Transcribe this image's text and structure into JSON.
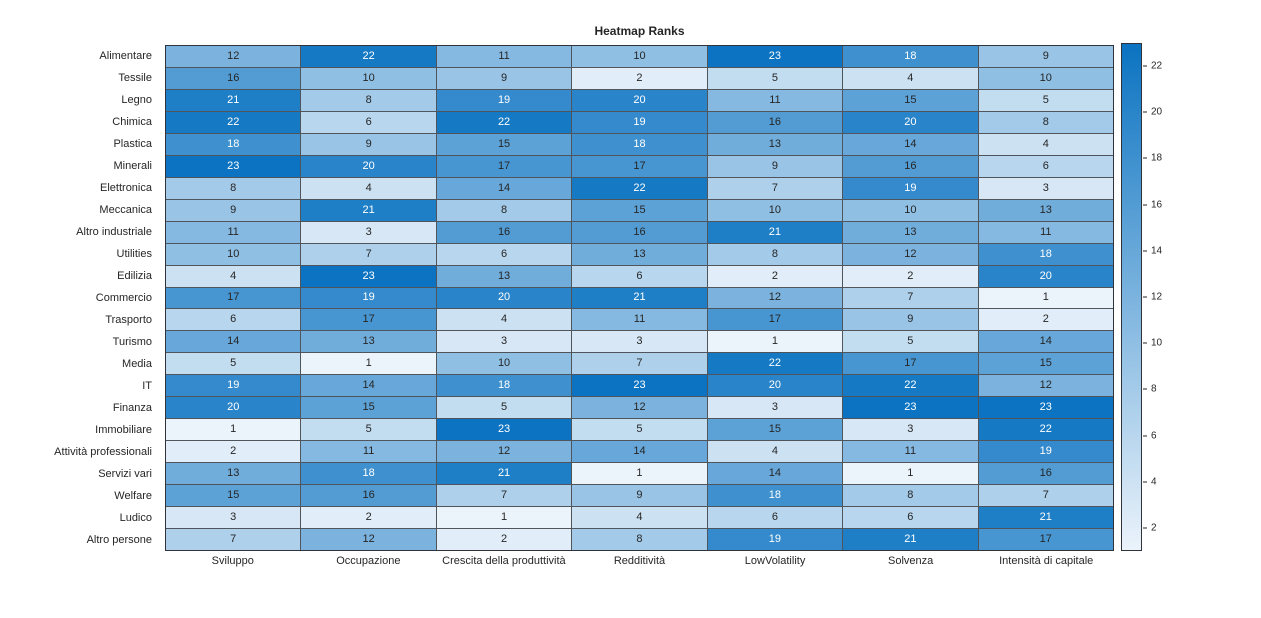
{
  "figure": {
    "title": "Heatmap Ranks"
  },
  "chart_data": {
    "type": "heatmap",
    "title": "Heatmap Ranks",
    "rows": [
      "Alimentare",
      "Tessile",
      "Legno",
      "Chimica",
      "Plastica",
      "Minerali",
      "Elettronica",
      "Meccanica",
      "Altro industriale",
      "Utilities",
      "Edilizia",
      "Commercio",
      "Trasporto",
      "Turismo",
      "Media",
      "IT",
      "Finanza",
      "Immobiliare",
      "Attività professionali",
      "Servizi vari",
      "Welfare",
      "Ludico",
      "Altro persone"
    ],
    "columns": [
      "Sviluppo",
      "Occupazione",
      "Crescita della produttività",
      "Redditività",
      "LowVolatility",
      "Solvenza",
      "Intensità di capitale"
    ],
    "values": [
      [
        12,
        22,
        11,
        10,
        23,
        18,
        9
      ],
      [
        16,
        10,
        9,
        2,
        5,
        4,
        10
      ],
      [
        21,
        8,
        19,
        20,
        11,
        15,
        5
      ],
      [
        22,
        6,
        22,
        19,
        16,
        20,
        8
      ],
      [
        18,
        9,
        15,
        18,
        13,
        14,
        4
      ],
      [
        23,
        20,
        17,
        17,
        9,
        16,
        6
      ],
      [
        8,
        4,
        14,
        22,
        7,
        19,
        3
      ],
      [
        9,
        21,
        8,
        15,
        10,
        10,
        13
      ],
      [
        11,
        3,
        16,
        16,
        21,
        13,
        11
      ],
      [
        10,
        7,
        6,
        13,
        8,
        12,
        18
      ],
      [
        4,
        23,
        13,
        6,
        2,
        2,
        20
      ],
      [
        17,
        19,
        20,
        21,
        12,
        7,
        1
      ],
      [
        6,
        17,
        4,
        11,
        17,
        9,
        2
      ],
      [
        14,
        13,
        3,
        3,
        1,
        5,
        14
      ],
      [
        5,
        1,
        10,
        7,
        22,
        17,
        15
      ],
      [
        19,
        14,
        18,
        23,
        20,
        22,
        12
      ],
      [
        20,
        15,
        5,
        12,
        3,
        23,
        23
      ],
      [
        1,
        5,
        23,
        5,
        15,
        3,
        22
      ],
      [
        2,
        11,
        12,
        14,
        4,
        11,
        19
      ],
      [
        13,
        18,
        21,
        1,
        14,
        1,
        16
      ],
      [
        15,
        16,
        7,
        9,
        18,
        8,
        7
      ],
      [
        3,
        2,
        1,
        4,
        6,
        6,
        21
      ],
      [
        7,
        12,
        2,
        8,
        19,
        21,
        17
      ]
    ],
    "value_range": [
      1,
      23
    ],
    "colorbar_ticks": [
      2,
      4,
      6,
      8,
      10,
      12,
      14,
      16,
      18,
      20,
      22
    ],
    "colormap": {
      "low": "#EBF3FB",
      "high": "#0B73C1"
    },
    "grid_color": "#50555B",
    "text_color_dark": "#262626",
    "text_color_light": "#FFFFFF",
    "white_text_threshold": 18,
    "legend_position": "right-colorbar",
    "grid": true
  }
}
